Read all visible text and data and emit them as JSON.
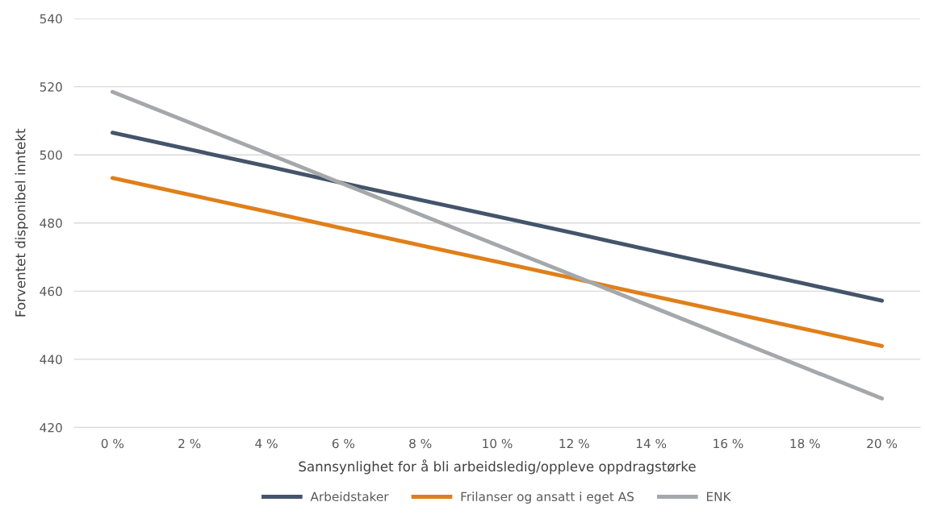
{
  "chart_data": {
    "type": "line",
    "xlabel": "Sannsynlighet for å bli arbeidsledig/oppleve oppdragstørke",
    "ylabel": "Forventet disponibel inntekt",
    "categories": [
      "0 %",
      "2 %",
      "4 %",
      "6 %",
      "8 %",
      "10 %",
      "12 %",
      "14 %",
      "16 %",
      "18 %",
      "20 %"
    ],
    "series": [
      {
        "name": "Arbeidstaker",
        "color": "#44546a",
        "values": [
          506.5,
          501.6,
          496.7,
          491.7,
          486.8,
          481.9,
          477.0,
          472.0,
          467.1,
          462.2,
          457.2
        ]
      },
      {
        "name": "Frilanser og ansatt i eget AS",
        "color": "#e07f1a",
        "values": [
          493.2,
          488.3,
          483.4,
          478.4,
          473.5,
          468.6,
          463.7,
          458.7,
          453.8,
          448.9,
          443.9
        ]
      },
      {
        "name": "ENK",
        "color": "#a5a8ab",
        "values": [
          518.5,
          509.5,
          500.5,
          491.5,
          482.5,
          473.5,
          464.5,
          455.5,
          446.5,
          437.5,
          428.5
        ]
      }
    ],
    "ylim": [
      420,
      540
    ],
    "yticks": [
      420,
      440,
      460,
      480,
      500,
      520,
      540
    ],
    "grid": "y",
    "legend": "bottom",
    "marker": "none",
    "line_style": "solid"
  }
}
